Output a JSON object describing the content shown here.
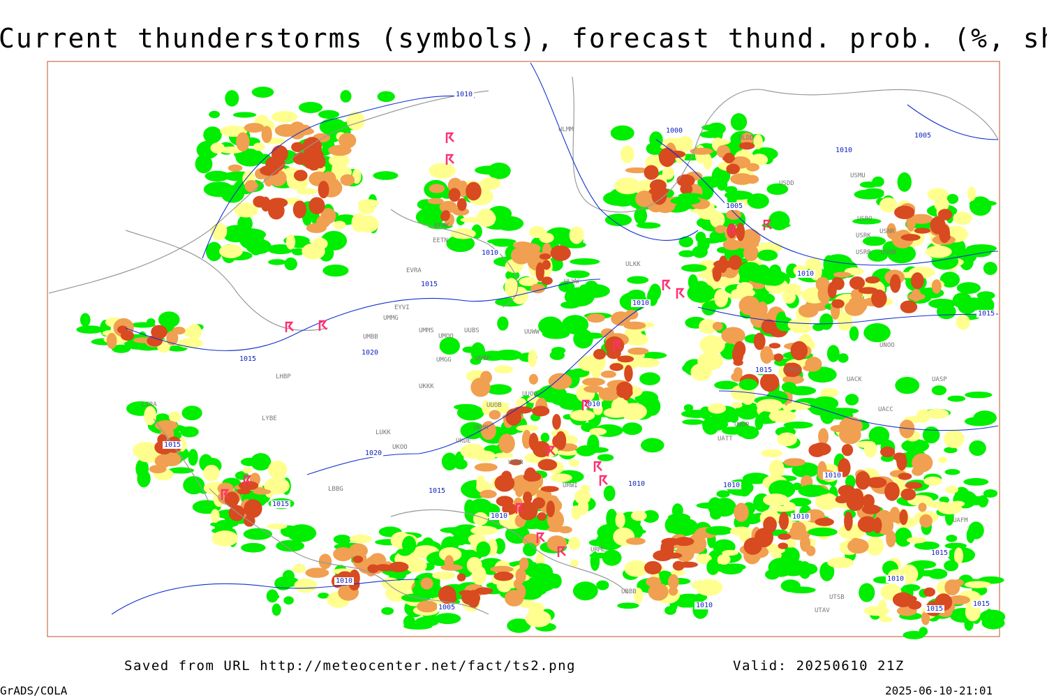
{
  "header": {
    "title": "Current thunderstorms (symbols), forecast thund. prob. (%, shaded)"
  },
  "map": {
    "isobar_labels": [
      "1010",
      "1000",
      "1005",
      "1010",
      "1010",
      "1015",
      "1005",
      "1010",
      "1010",
      "1015",
      "1020",
      "1015",
      "1015",
      "1020",
      "1010",
      "1015",
      "1010",
      "1010",
      "1010",
      "1015",
      "1010",
      "1010",
      "1015",
      "1010",
      "1005",
      "1015",
      "1010",
      "1015",
      "1010",
      "1015"
    ],
    "stations": [
      "ULMM",
      "ULDD",
      "USDD",
      "USMU",
      "USRO",
      "USRK",
      "USNR",
      "USRR",
      "USNN",
      "ULKK",
      "ULWW",
      "EVRA",
      "EYVI",
      "UMMG",
      "UMMS",
      "UMOO",
      "UMBB",
      "UUBS",
      "UUWW",
      "EETN",
      "EFHK",
      "UMGG",
      "UUBP",
      "UKKK",
      "UUOO",
      "UUOB",
      "LUKK",
      "UKOO",
      "UKHH",
      "UKDE",
      "URRR",
      "URWI",
      "URML",
      "UBBB",
      "UNOO",
      "UACC",
      "UAUU",
      "UACK",
      "UASP",
      "UATT",
      "UWOR",
      "UTAV",
      "UTSB",
      "UAFM",
      "LBBG",
      "LYBE",
      "LHBP",
      "LIRA"
    ]
  },
  "footer": {
    "source": "Saved from URL http://meteocenter.net/fact/ts2.png",
    "valid": "Valid: 20250610 21Z",
    "software": "GrADS/COLA",
    "timestamp": "2025-06-10-21:01"
  }
}
